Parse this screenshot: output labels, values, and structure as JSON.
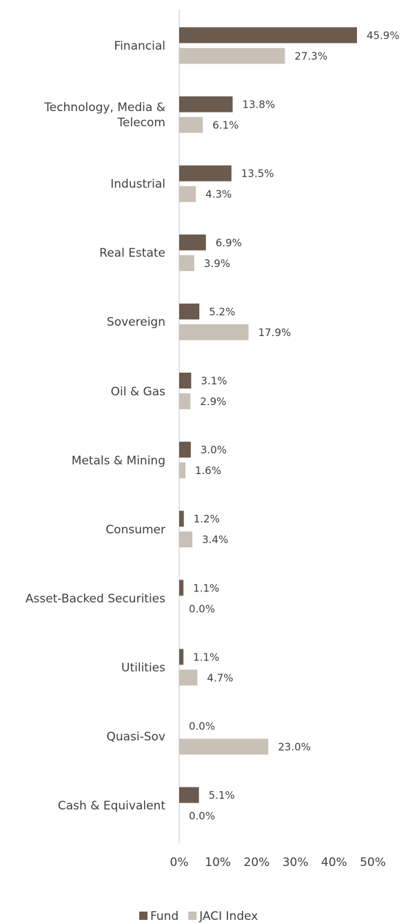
{
  "chart_data": {
    "type": "bar",
    "orientation": "horizontal",
    "categories": [
      "Financial",
      "Technology, Media & Telecom",
      "Industrial",
      "Real Estate",
      "Sovereign",
      "Oil & Gas",
      "Metals & Mining",
      "Consumer",
      "Asset-Backed Securities",
      "Utilities",
      "Quasi-Sov",
      "Cash & Equivalent"
    ],
    "series": [
      {
        "name": "Fund",
        "color": "#6b5a4e",
        "values": [
          45.9,
          13.8,
          13.5,
          6.9,
          5.2,
          3.1,
          3.0,
          1.2,
          1.1,
          1.1,
          0.0,
          5.1
        ],
        "value_labels": [
          "45.9%",
          "13.8%",
          "13.5%",
          "6.9%",
          "5.2%",
          "3.1%",
          "3.0%",
          "1.2%",
          "1.1%",
          "1.1%",
          "0.0%",
          "5.1%"
        ]
      },
      {
        "name": "JACI Index",
        "color": "#c9c0b6",
        "values": [
          27.3,
          6.1,
          4.3,
          3.9,
          17.9,
          2.9,
          1.6,
          3.4,
          0.0,
          4.7,
          23.0,
          0.0
        ],
        "value_labels": [
          "27.3%",
          "6.1%",
          "4.3%",
          "3.9%",
          "17.9%",
          "2.9%",
          "1.6%",
          "3.4%",
          "0.0%",
          "4.7%",
          "23.0%",
          "0.0%"
        ]
      }
    ],
    "xlim": [
      0,
      50
    ],
    "xticks": [
      {
        "value": 0,
        "label": "0%"
      },
      {
        "value": 10,
        "label": "10%"
      },
      {
        "value": 20,
        "label": "20%"
      },
      {
        "value": 30,
        "label": "30%"
      },
      {
        "value": 40,
        "label": "40%"
      },
      {
        "value": 50,
        "label": "50%"
      }
    ],
    "grid": false,
    "legend": "bottom"
  }
}
